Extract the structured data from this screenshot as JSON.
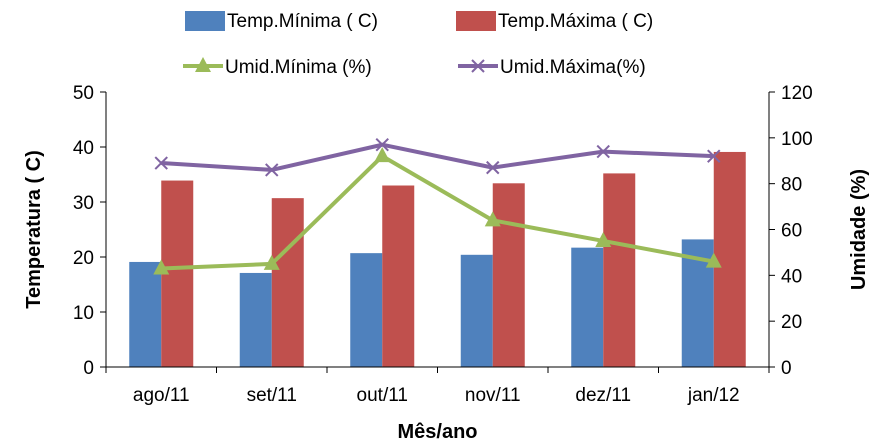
{
  "chart_data": {
    "type": "bar",
    "categories": [
      "ago/11",
      "set/11",
      "out/11",
      "nov/11",
      "dez/11",
      "jan/12"
    ],
    "xlabel": "Mês/ano",
    "ylabel": "Temperatura ( C)",
    "y2label": "Umidade (%)",
    "ylim": [
      0,
      50
    ],
    "y2lim": [
      0,
      120
    ],
    "yticks": [
      "0",
      "10",
      "20",
      "30",
      "40",
      "50"
    ],
    "y2ticks": [
      "0",
      "20",
      "40",
      "60",
      "80",
      "100",
      "120"
    ],
    "grid": false,
    "legend_position": "top",
    "bar_series": [
      {
        "name": "Temp.Mínima ( C)",
        "color": "#4F81BD",
        "values": [
          19.1,
          17.1,
          20.7,
          20.4,
          21.7,
          23.2
        ]
      },
      {
        "name": "Temp.Máxima ( C)",
        "color": "#C0504D",
        "values": [
          33.9,
          30.7,
          33.0,
          33.4,
          35.2,
          39.1
        ]
      }
    ],
    "line_series": [
      {
        "name": "Umid.Mínima (%)",
        "color": "#9BBB59",
        "marker": "triangle",
        "axis": "right",
        "values": [
          43,
          45,
          92,
          64,
          55,
          46
        ]
      },
      {
        "name": "Umid.Máxima(%)",
        "color": "#8064A2",
        "marker": "x",
        "axis": "right",
        "values": [
          89,
          86,
          97,
          87,
          94,
          92
        ]
      }
    ]
  }
}
